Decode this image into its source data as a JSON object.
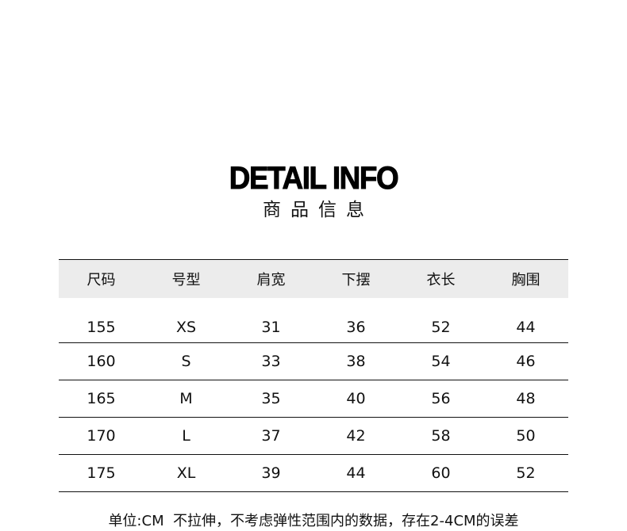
{
  "title": "DETAIL INFO",
  "subtitle": "商品信息",
  "table": {
    "headers": [
      "尺码",
      "号型",
      "肩宽",
      "下摆",
      "衣长",
      "胸围"
    ],
    "rows": [
      [
        "155",
        "XS",
        "31",
        "36",
        "52",
        "44"
      ],
      [
        "160",
        "S",
        "33",
        "38",
        "54",
        "46"
      ],
      [
        "165",
        "M",
        "35",
        "40",
        "56",
        "48"
      ],
      [
        "170",
        "L",
        "37",
        "42",
        "58",
        "50"
      ],
      [
        "175",
        "XL",
        "39",
        "44",
        "60",
        "52"
      ]
    ]
  },
  "note": "单位:CM  不拉伸，不考虑弹性范围内的数据，存在2-4CM的误差"
}
